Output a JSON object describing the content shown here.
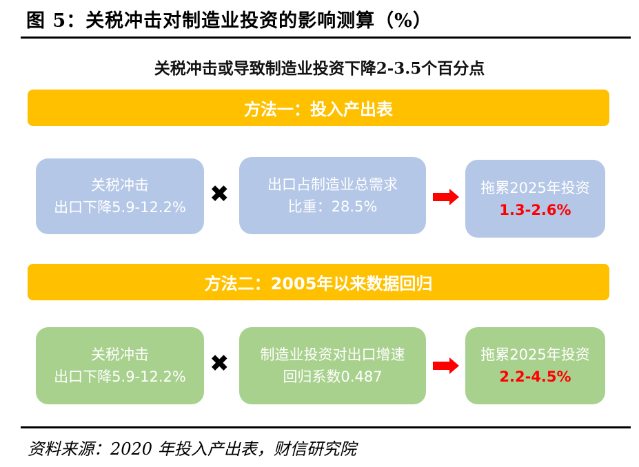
{
  "title": "图 5：关税冲击对制造业投资的影响测算（%）",
  "subtitle": "关税冲击或导致制造业投资下降2-3.5个百分点",
  "method1": {
    "banner": "方法一：投入产出表",
    "box1": {
      "line1": "关税冲击",
      "line2": "出口下降5.9-12.2%"
    },
    "box2": {
      "line1": "出口占制造业总需求",
      "line2": "比重：28.5%"
    },
    "box3": {
      "line1": "拖累2025年投资",
      "line2": "1.3-2.6%"
    }
  },
  "method2": {
    "banner": "方法二：2005年以来数据回归",
    "box1": {
      "line1": "关税冲击",
      "line2": "出口下降5.9-12.2%"
    },
    "box2": {
      "line1": "制造业投资对出口增速",
      "line2": "回归系数0.487"
    },
    "box3": {
      "line1": "拖累2025年投资",
      "line2": "2.2-4.5%"
    }
  },
  "source": "资料来源：2020 年投入产出表，财信研究院",
  "colors": {
    "banner": "#FFC000",
    "method1_box": "#B4C7E7",
    "method2_box": "#A9D18E",
    "result": "#FF0000",
    "arrow": "#FF0000"
  },
  "icons": {
    "multiply": "x-mark-icon",
    "arrow": "right-arrow-icon"
  }
}
